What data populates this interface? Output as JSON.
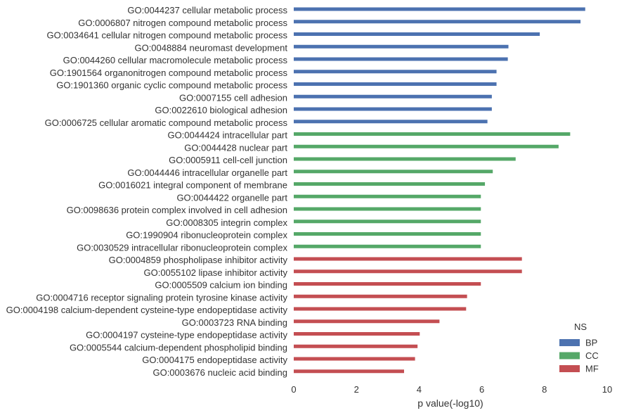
{
  "chart_data": {
    "type": "bar",
    "orientation": "horizontal",
    "title": "",
    "xlabel": "p value(-log10)",
    "ylabel": "",
    "xlim": [
      0,
      10
    ],
    "xticks": [
      "0",
      "2",
      "4",
      "6",
      "8",
      "10"
    ],
    "grid": false,
    "legend": {
      "title": "NS",
      "placement": "bottom-right",
      "entries": [
        {
          "name": "BP",
          "color": "#4c72b0"
        },
        {
          "name": "CC",
          "color": "#55a868"
        },
        {
          "name": "MF",
          "color": "#c44e52"
        }
      ]
    },
    "categories": [
      {
        "label": "GO:0044237 cellular metabolic process",
        "group": "BP",
        "value": 9.3
      },
      {
        "label": "GO:0006807 nitrogen compound metabolic process",
        "group": "BP",
        "value": 9.15
      },
      {
        "label": "GO:0034641 cellular nitrogen compound metabolic process",
        "group": "BP",
        "value": 7.85
      },
      {
        "label": "GO:0048884 neuromast development",
        "group": "BP",
        "value": 6.85
      },
      {
        "label": "GO:0044260 cellular macromolecule metabolic process",
        "group": "BP",
        "value": 6.83
      },
      {
        "label": "GO:1901564 organonitrogen compound metabolic process",
        "group": "BP",
        "value": 6.47
      },
      {
        "label": "GO:1901360 organic cyclic compound metabolic process",
        "group": "BP",
        "value": 6.47
      },
      {
        "label": "GO:0007155 cell adhesion",
        "group": "BP",
        "value": 6.32
      },
      {
        "label": "GO:0022610 biological adhesion",
        "group": "BP",
        "value": 6.32
      },
      {
        "label": "GO:0006725 cellular aromatic compound metabolic process",
        "group": "BP",
        "value": 6.18
      },
      {
        "label": "GO:0044424 intracellular part",
        "group": "CC",
        "value": 8.82
      },
      {
        "label": "GO:0044428 nuclear part",
        "group": "CC",
        "value": 8.45
      },
      {
        "label": "GO:0005911 cell-cell junction",
        "group": "CC",
        "value": 7.08
      },
      {
        "label": "GO:0044446 intracellular organelle part",
        "group": "CC",
        "value": 6.35
      },
      {
        "label": "GO:0016021 integral component of membrane",
        "group": "CC",
        "value": 6.1
      },
      {
        "label": "GO:0044422 organelle part",
        "group": "CC",
        "value": 5.97
      },
      {
        "label": "GO:0098636 protein complex involved in cell adhesion",
        "group": "CC",
        "value": 5.97
      },
      {
        "label": "GO:0008305 integrin complex",
        "group": "CC",
        "value": 5.97
      },
      {
        "label": "GO:1990904 ribonucleoprotein complex",
        "group": "CC",
        "value": 5.97
      },
      {
        "label": "GO:0030529 intracellular ribonucleoprotein complex",
        "group": "CC",
        "value": 5.97
      },
      {
        "label": "GO:0004859 phospholipase inhibitor activity",
        "group": "MF",
        "value": 7.28
      },
      {
        "label": "GO:0055102 lipase inhibitor activity",
        "group": "MF",
        "value": 7.28
      },
      {
        "label": "GO:0005509 calcium ion binding",
        "group": "MF",
        "value": 5.97
      },
      {
        "label": "GO:0004716 receptor signaling protein tyrosine kinase activity",
        "group": "MF",
        "value": 5.53
      },
      {
        "label": "GO:0004198 calcium-dependent cysteine-type endopeptidase activity",
        "group": "MF",
        "value": 5.5
      },
      {
        "label": "GO:0003723 RNA binding",
        "group": "MF",
        "value": 4.65
      },
      {
        "label": "GO:0004197 cysteine-type endopeptidase activity",
        "group": "MF",
        "value": 4.02
      },
      {
        "label": "GO:0005544 calcium-dependent phospholipid binding",
        "group": "MF",
        "value": 3.95
      },
      {
        "label": "GO:0004175 endopeptidase activity",
        "group": "MF",
        "value": 3.87
      },
      {
        "label": "GO:0003676 nucleic acid binding",
        "group": "MF",
        "value": 3.52
      }
    ]
  }
}
